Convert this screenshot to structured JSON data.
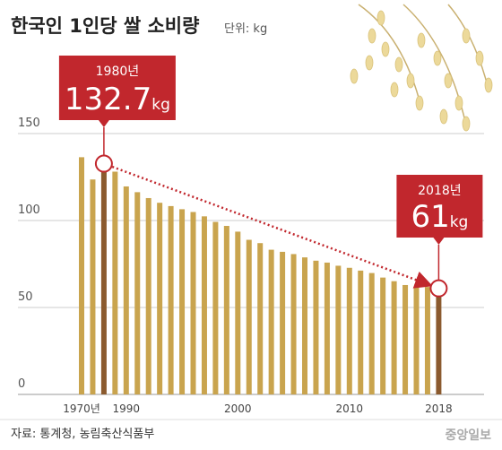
{
  "chart_data": {
    "type": "bar",
    "title": "한국인 1인당 쌀 소비량",
    "subtitle": "단위: kg",
    "source": "자료: 통계청, 농림축산식품부",
    "logo": "중앙일보",
    "categories": [
      "1970년",
      null,
      null,
      null,
      "1990",
      null,
      null,
      null,
      null,
      null,
      null,
      null,
      null,
      null,
      "2000",
      null,
      null,
      null,
      null,
      null,
      null,
      null,
      null,
      null,
      "2010",
      null,
      null,
      null,
      null,
      null,
      null,
      null,
      "2018"
    ],
    "values": [
      136.4,
      123.6,
      132.7,
      128.1,
      119.6,
      116.3,
      112.9,
      110.2,
      108.3,
      106.5,
      104.9,
      102.4,
      99.2,
      96.9,
      93.6,
      88.9,
      87.0,
      83.2,
      82.0,
      80.7,
      78.8,
      76.9,
      75.8,
      74.0,
      72.8,
      71.2,
      69.8,
      67.2,
      65.1,
      62.9,
      61.9,
      61.8,
      61.0
    ],
    "value_labels": [
      null,
      null,
      "132.7kg",
      null,
      null,
      null,
      null,
      null,
      null,
      null,
      null,
      null,
      null,
      null,
      null,
      null,
      null,
      null,
      null,
      null,
      null,
      null,
      null,
      null,
      null,
      null,
      null,
      null,
      null,
      null,
      null,
      null,
      "61kg"
    ],
    "callout_labels": [
      null,
      null,
      "1980년",
      null,
      null,
      null,
      null,
      null,
      null,
      null,
      null,
      null,
      null,
      null,
      null,
      null,
      null,
      null,
      null,
      null,
      null,
      null,
      null,
      null,
      null,
      null,
      null,
      null,
      null,
      null,
      null,
      null,
      "2018년"
    ],
    "color": "#c9a44e",
    "highlight_color": "#8b5a2e",
    "callout_color": "#c1272d",
    "ylim": [
      0,
      150
    ],
    "yticks": [
      0,
      50,
      100,
      150
    ],
    "grid": true
  }
}
